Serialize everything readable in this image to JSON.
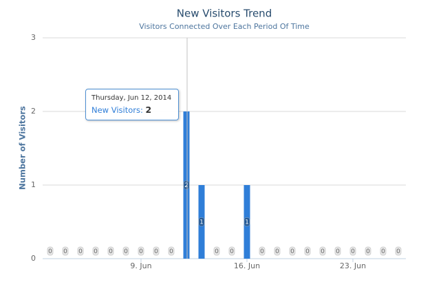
{
  "chart_data": {
    "type": "bar",
    "title": "New Visitors Trend",
    "subtitle": "Visitors Connected Over Each Period Of Time",
    "y_label": "Number of Visitors",
    "x": [
      "2014-06-03",
      "2014-06-04",
      "2014-06-05",
      "2014-06-06",
      "2014-06-07",
      "2014-06-08",
      "2014-06-09",
      "2014-06-10",
      "2014-06-11",
      "2014-06-12",
      "2014-06-13",
      "2014-06-14",
      "2014-06-15",
      "2014-06-16",
      "2014-06-17",
      "2014-06-18",
      "2014-06-19",
      "2014-06-20",
      "2014-06-21",
      "2014-06-22",
      "2014-06-23",
      "2014-06-24",
      "2014-06-25",
      "2014-06-26"
    ],
    "values": [
      0,
      0,
      0,
      0,
      0,
      0,
      0,
      0,
      0,
      2,
      1,
      0,
      0,
      1,
      0,
      0,
      0,
      0,
      0,
      0,
      0,
      0,
      0,
      0
    ],
    "color": "#2f7ed8",
    "xlim": [
      "2014-06-02T12:00:00Z",
      "2014-06-26T12:00:00Z"
    ],
    "xticks": [
      {
        "value": "2014-06-09",
        "label": "9. Jun"
      },
      {
        "value": "2014-06-16",
        "label": "16. Jun"
      },
      {
        "value": "2014-06-23",
        "label": "23. Jun"
      }
    ],
    "ylim": [
      0,
      3
    ],
    "yticks": [
      0,
      1,
      2,
      3
    ],
    "grid": true,
    "tooltip": {
      "date": "Thursday, Jun 12, 2014",
      "label": "New Visitors:",
      "value": 2
    }
  }
}
